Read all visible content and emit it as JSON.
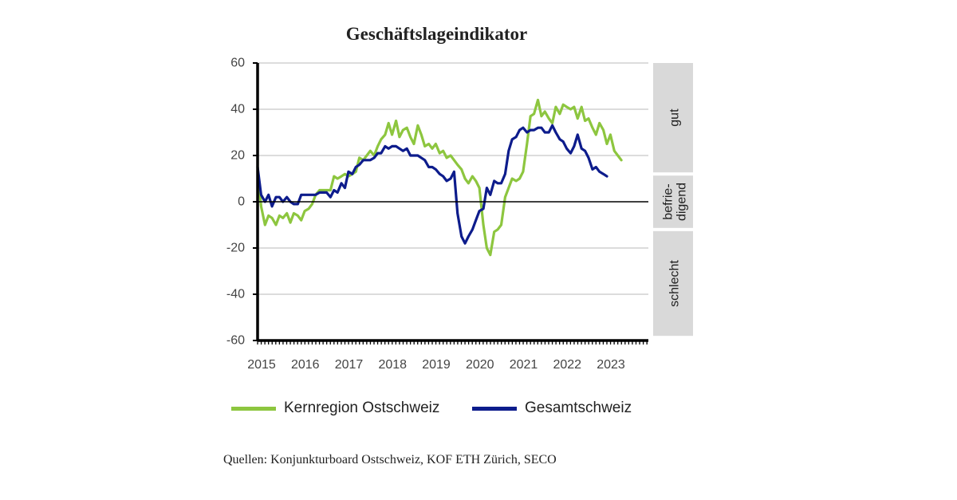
{
  "chart_data": {
    "type": "line",
    "title": "Geschäftslageindikator",
    "ylim": [
      -60,
      60
    ],
    "yticks": [
      60,
      40,
      20,
      0,
      -20,
      -40,
      -60
    ],
    "xlim": [
      2015,
      2023.95
    ],
    "year_labels": [
      "2015",
      "2016",
      "2017",
      "2018",
      "2019",
      "2020",
      "2021",
      "2022",
      "2023"
    ],
    "grid": true,
    "legend_position": "bottom",
    "zones": [
      {
        "label": "gut",
        "from": 60,
        "to": 12
      },
      {
        "label": "befrie-digend",
        "line1": "befrie-",
        "line2": "digend",
        "from": 12,
        "to": -12
      },
      {
        "label": "schlecht",
        "from": -12,
        "to": -58
      }
    ],
    "series": [
      {
        "name": "Kernregion Ostschweiz",
        "color": "#8dc63f",
        "points": [
          [
            2015.0,
            13
          ],
          [
            2015.08,
            -2
          ],
          [
            2015.17,
            -10
          ],
          [
            2015.25,
            -6
          ],
          [
            2015.33,
            -7
          ],
          [
            2015.42,
            -10
          ],
          [
            2015.5,
            -6
          ],
          [
            2015.58,
            -7
          ],
          [
            2015.67,
            -5
          ],
          [
            2015.75,
            -9
          ],
          [
            2015.83,
            -5
          ],
          [
            2015.92,
            -6
          ],
          [
            2016.0,
            -8
          ],
          [
            2016.08,
            -4
          ],
          [
            2016.17,
            -3
          ],
          [
            2016.25,
            -1
          ],
          [
            2016.33,
            3
          ],
          [
            2016.42,
            5
          ],
          [
            2016.5,
            5
          ],
          [
            2016.58,
            5
          ],
          [
            2016.67,
            5
          ],
          [
            2016.75,
            11
          ],
          [
            2016.83,
            10
          ],
          [
            2016.92,
            11
          ],
          [
            2017.0,
            12
          ],
          [
            2017.08,
            11
          ],
          [
            2017.17,
            12
          ],
          [
            2017.25,
            13
          ],
          [
            2017.33,
            19
          ],
          [
            2017.42,
            18
          ],
          [
            2017.5,
            20
          ],
          [
            2017.58,
            22
          ],
          [
            2017.67,
            20
          ],
          [
            2017.75,
            24
          ],
          [
            2017.83,
            27
          ],
          [
            2017.92,
            29
          ],
          [
            2018.0,
            34
          ],
          [
            2018.08,
            29
          ],
          [
            2018.17,
            35
          ],
          [
            2018.25,
            28
          ],
          [
            2018.33,
            31
          ],
          [
            2018.42,
            32
          ],
          [
            2018.5,
            28
          ],
          [
            2018.58,
            25
          ],
          [
            2018.67,
            33
          ],
          [
            2018.75,
            29
          ],
          [
            2018.83,
            24
          ],
          [
            2018.92,
            25
          ],
          [
            2019.0,
            23
          ],
          [
            2019.08,
            25
          ],
          [
            2019.17,
            21
          ],
          [
            2019.25,
            22
          ],
          [
            2019.33,
            19
          ],
          [
            2019.42,
            20
          ],
          [
            2019.5,
            18
          ],
          [
            2019.58,
            16
          ],
          [
            2019.67,
            14
          ],
          [
            2019.75,
            10
          ],
          [
            2019.83,
            8
          ],
          [
            2019.92,
            11
          ],
          [
            2020.0,
            9
          ],
          [
            2020.08,
            6
          ],
          [
            2020.17,
            -10
          ],
          [
            2020.25,
            -20
          ],
          [
            2020.33,
            -23
          ],
          [
            2020.42,
            -13
          ],
          [
            2020.5,
            -12
          ],
          [
            2020.58,
            -10
          ],
          [
            2020.67,
            2
          ],
          [
            2020.75,
            6
          ],
          [
            2020.83,
            10
          ],
          [
            2020.92,
            9
          ],
          [
            2021.0,
            10
          ],
          [
            2021.08,
            13
          ],
          [
            2021.17,
            25
          ],
          [
            2021.25,
            37
          ],
          [
            2021.33,
            38
          ],
          [
            2021.42,
            44
          ],
          [
            2021.5,
            37
          ],
          [
            2021.58,
            39
          ],
          [
            2021.67,
            36
          ],
          [
            2021.75,
            34
          ],
          [
            2021.83,
            41
          ],
          [
            2021.92,
            38
          ],
          [
            2022.0,
            42
          ],
          [
            2022.08,
            41
          ],
          [
            2022.17,
            40
          ],
          [
            2022.25,
            41
          ],
          [
            2022.33,
            36
          ],
          [
            2022.42,
            41
          ],
          [
            2022.5,
            35
          ],
          [
            2022.58,
            36
          ],
          [
            2022.67,
            32
          ],
          [
            2022.75,
            29
          ],
          [
            2022.83,
            34
          ],
          [
            2022.92,
            31
          ],
          [
            2023.0,
            25
          ],
          [
            2023.08,
            29
          ],
          [
            2023.17,
            22
          ],
          [
            2023.25,
            20
          ],
          [
            2023.33,
            18
          ]
        ]
      },
      {
        "name": "Gesamtschweiz",
        "color": "#0d1c8c",
        "points": [
          [
            2015.0,
            15
          ],
          [
            2015.08,
            3
          ],
          [
            2015.17,
            0
          ],
          [
            2015.25,
            3
          ],
          [
            2015.33,
            -2
          ],
          [
            2015.42,
            2
          ],
          [
            2015.5,
            2
          ],
          [
            2015.58,
            0
          ],
          [
            2015.67,
            2
          ],
          [
            2015.75,
            0
          ],
          [
            2015.83,
            -1
          ],
          [
            2015.92,
            -1
          ],
          [
            2016.0,
            3
          ],
          [
            2016.08,
            3
          ],
          [
            2016.17,
            3
          ],
          [
            2016.25,
            3
          ],
          [
            2016.33,
            3
          ],
          [
            2016.42,
            4
          ],
          [
            2016.5,
            4
          ],
          [
            2016.58,
            4
          ],
          [
            2016.67,
            2
          ],
          [
            2016.75,
            5
          ],
          [
            2016.83,
            4
          ],
          [
            2016.92,
            8
          ],
          [
            2017.0,
            6
          ],
          [
            2017.08,
            13
          ],
          [
            2017.17,
            12
          ],
          [
            2017.25,
            15
          ],
          [
            2017.33,
            16
          ],
          [
            2017.42,
            18
          ],
          [
            2017.5,
            18
          ],
          [
            2017.58,
            18
          ],
          [
            2017.67,
            19
          ],
          [
            2017.75,
            21
          ],
          [
            2017.83,
            21
          ],
          [
            2017.92,
            24
          ],
          [
            2018.0,
            23
          ],
          [
            2018.08,
            24
          ],
          [
            2018.17,
            24
          ],
          [
            2018.25,
            23
          ],
          [
            2018.33,
            22
          ],
          [
            2018.42,
            23
          ],
          [
            2018.5,
            20
          ],
          [
            2018.58,
            20
          ],
          [
            2018.67,
            20
          ],
          [
            2018.75,
            19
          ],
          [
            2018.83,
            18
          ],
          [
            2018.92,
            15
          ],
          [
            2019.0,
            15
          ],
          [
            2019.08,
            14
          ],
          [
            2019.17,
            12
          ],
          [
            2019.25,
            11
          ],
          [
            2019.33,
            9
          ],
          [
            2019.42,
            10
          ],
          [
            2019.5,
            13
          ],
          [
            2019.58,
            -5
          ],
          [
            2019.67,
            -15
          ],
          [
            2019.75,
            -18
          ],
          [
            2019.83,
            -15
          ],
          [
            2019.92,
            -12
          ],
          [
            2020.0,
            -8
          ],
          [
            2020.08,
            -4
          ],
          [
            2020.17,
            -3
          ],
          [
            2020.25,
            6
          ],
          [
            2020.33,
            3
          ],
          [
            2020.42,
            9
          ],
          [
            2020.5,
            8
          ],
          [
            2020.58,
            8
          ],
          [
            2020.67,
            12
          ],
          [
            2020.75,
            22
          ],
          [
            2020.83,
            27
          ],
          [
            2020.92,
            28
          ],
          [
            2021.0,
            31
          ],
          [
            2021.08,
            32
          ],
          [
            2021.17,
            30
          ],
          [
            2021.25,
            31
          ],
          [
            2021.33,
            31
          ],
          [
            2021.42,
            32
          ],
          [
            2021.5,
            32
          ],
          [
            2021.58,
            30
          ],
          [
            2021.67,
            30
          ],
          [
            2021.75,
            33
          ],
          [
            2021.83,
            30
          ],
          [
            2021.92,
            27
          ],
          [
            2022.0,
            26
          ],
          [
            2022.08,
            23
          ],
          [
            2022.17,
            21
          ],
          [
            2022.25,
            24
          ],
          [
            2022.33,
            29
          ],
          [
            2022.42,
            23
          ],
          [
            2022.5,
            22
          ],
          [
            2022.58,
            19
          ],
          [
            2022.67,
            14
          ],
          [
            2022.75,
            15
          ],
          [
            2022.83,
            13
          ],
          [
            2022.92,
            12
          ],
          [
            2023.0,
            11
          ]
        ]
      }
    ]
  },
  "source_text": "Quellen: Konjunkturboard Ostschweiz, KOF ETH Zürich, SECO"
}
